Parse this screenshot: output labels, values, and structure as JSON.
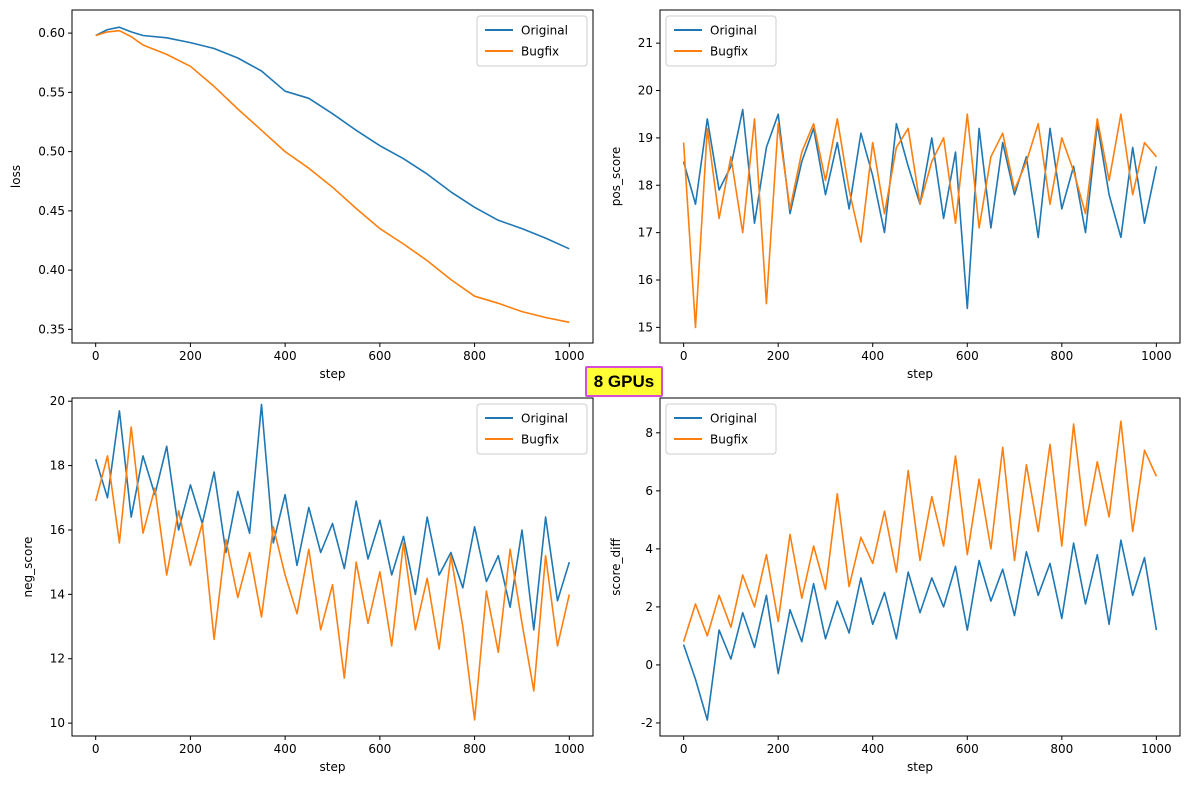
{
  "figure": {
    "badge": "8 GPUs",
    "colors": {
      "original": "#1f77b4",
      "bugfix": "#ff7f0e"
    }
  },
  "chart_data": [
    {
      "type": "line",
      "xlabel": "step",
      "ylabel": "loss",
      "xlim": [
        -50,
        1050
      ],
      "ylim": [
        0.3385,
        0.6195
      ],
      "xticks": [
        0,
        200,
        400,
        600,
        800,
        1000
      ],
      "yticks": [
        0.35,
        0.4,
        0.45,
        0.5,
        0.55,
        0.6
      ],
      "ytick_decimals": 2,
      "legend_position": "upper right",
      "grid": false,
      "series": [
        {
          "name": "Original",
          "x": [
            0,
            25,
            50,
            75,
            100,
            150,
            200,
            250,
            300,
            350,
            400,
            450,
            500,
            550,
            600,
            650,
            700,
            750,
            800,
            850,
            900,
            950,
            1000
          ],
          "y": [
            0.598,
            0.603,
            0.605,
            0.601,
            0.598,
            0.596,
            0.592,
            0.587,
            0.579,
            0.568,
            0.551,
            0.545,
            0.532,
            0.518,
            0.505,
            0.494,
            0.481,
            0.466,
            0.453,
            0.442,
            0.435,
            0.427,
            0.418
          ]
        },
        {
          "name": "Bugfix",
          "x": [
            0,
            25,
            50,
            75,
            100,
            150,
            200,
            250,
            300,
            350,
            400,
            450,
            500,
            550,
            600,
            650,
            700,
            750,
            800,
            850,
            900,
            950,
            1000
          ],
          "y": [
            0.598,
            0.601,
            0.602,
            0.597,
            0.59,
            0.582,
            0.572,
            0.555,
            0.536,
            0.518,
            0.5,
            0.486,
            0.47,
            0.452,
            0.435,
            0.422,
            0.408,
            0.392,
            0.378,
            0.372,
            0.365,
            0.36,
            0.356
          ]
        }
      ]
    },
    {
      "type": "line",
      "xlabel": "step",
      "ylabel": "pos_score",
      "xlim": [
        -50,
        1050
      ],
      "ylim": [
        14.67,
        21.7
      ],
      "xticks": [
        0,
        200,
        400,
        600,
        800,
        1000
      ],
      "yticks": [
        15,
        16,
        17,
        18,
        19,
        20,
        21
      ],
      "ytick_decimals": 0,
      "legend_position": "upper left",
      "grid": false,
      "series": [
        {
          "name": "Original",
          "x": [
            0,
            25,
            50,
            75,
            100,
            125,
            150,
            175,
            200,
            225,
            250,
            275,
            300,
            325,
            350,
            375,
            400,
            425,
            450,
            475,
            500,
            525,
            550,
            575,
            600,
            625,
            650,
            675,
            700,
            725,
            750,
            775,
            800,
            825,
            850,
            875,
            900,
            925,
            950,
            975,
            1000
          ],
          "y": [
            18.5,
            17.6,
            19.4,
            17.9,
            18.4,
            19.6,
            17.2,
            18.8,
            19.5,
            17.4,
            18.5,
            19.2,
            17.8,
            18.9,
            17.5,
            19.1,
            18.2,
            17.0,
            19.3,
            18.4,
            17.6,
            19.0,
            17.3,
            18.7,
            15.4,
            19.2,
            17.1,
            18.9,
            17.8,
            18.6,
            16.9,
            19.2,
            17.5,
            18.4,
            17.0,
            19.3,
            17.8,
            16.9,
            18.8,
            17.2,
            18.4
          ]
        },
        {
          "name": "Bugfix",
          "x": [
            0,
            25,
            50,
            75,
            100,
            125,
            150,
            175,
            200,
            225,
            250,
            275,
            300,
            325,
            350,
            375,
            400,
            425,
            450,
            475,
            500,
            525,
            550,
            575,
            600,
            625,
            650,
            675,
            700,
            725,
            750,
            775,
            800,
            825,
            850,
            875,
            900,
            925,
            950,
            975,
            1000
          ],
          "y": [
            18.9,
            15.0,
            19.2,
            17.3,
            18.6,
            17.0,
            19.4,
            15.5,
            19.3,
            17.5,
            18.7,
            19.3,
            18.1,
            19.4,
            17.9,
            16.8,
            18.9,
            17.4,
            18.8,
            19.2,
            17.6,
            18.5,
            19.0,
            17.2,
            19.5,
            17.1,
            18.6,
            19.1,
            17.9,
            18.5,
            19.3,
            17.6,
            19.0,
            18.3,
            17.4,
            19.4,
            18.1,
            19.5,
            17.8,
            18.9,
            18.6
          ]
        }
      ]
    },
    {
      "type": "line",
      "xlabel": "step",
      "ylabel": "neg_score",
      "xlim": [
        -50,
        1050
      ],
      "ylim": [
        9.6,
        20.1
      ],
      "xticks": [
        0,
        200,
        400,
        600,
        800,
        1000
      ],
      "yticks": [
        10,
        12,
        14,
        16,
        18,
        20
      ],
      "ytick_decimals": 0,
      "legend_position": "upper right",
      "grid": false,
      "series": [
        {
          "name": "Original",
          "x": [
            0,
            25,
            50,
            75,
            100,
            125,
            150,
            175,
            200,
            225,
            250,
            275,
            300,
            325,
            350,
            375,
            400,
            425,
            450,
            475,
            500,
            525,
            550,
            575,
            600,
            625,
            650,
            675,
            700,
            725,
            750,
            775,
            800,
            825,
            850,
            875,
            900,
            925,
            950,
            975,
            1000
          ],
          "y": [
            18.2,
            17.0,
            19.7,
            16.4,
            18.3,
            17.1,
            18.6,
            16.0,
            17.4,
            16.2,
            17.8,
            15.3,
            17.2,
            15.9,
            19.9,
            15.6,
            17.1,
            14.9,
            16.7,
            15.3,
            16.2,
            14.8,
            16.9,
            15.1,
            16.3,
            14.6,
            15.8,
            14.0,
            16.4,
            14.6,
            15.3,
            14.2,
            16.1,
            14.4,
            15.2,
            13.6,
            16.0,
            12.9,
            16.4,
            13.8,
            15.0
          ]
        },
        {
          "name": "Bugfix",
          "x": [
            0,
            25,
            50,
            75,
            100,
            125,
            150,
            175,
            200,
            225,
            250,
            275,
            300,
            325,
            350,
            375,
            400,
            425,
            450,
            475,
            500,
            525,
            550,
            575,
            600,
            625,
            650,
            675,
            700,
            725,
            750,
            775,
            800,
            825,
            850,
            875,
            900,
            925,
            950,
            975,
            1000
          ],
          "y": [
            16.9,
            18.3,
            15.6,
            19.2,
            15.9,
            17.3,
            14.6,
            16.6,
            14.9,
            16.2,
            12.6,
            15.7,
            13.9,
            15.3,
            13.3,
            16.1,
            14.6,
            13.4,
            15.4,
            12.9,
            14.3,
            11.4,
            15.0,
            13.1,
            14.7,
            12.4,
            15.6,
            12.9,
            14.5,
            12.3,
            15.2,
            13.0,
            10.1,
            14.1,
            12.2,
            15.4,
            13.1,
            11.0,
            15.2,
            12.4,
            14.0
          ]
        }
      ]
    },
    {
      "type": "line",
      "xlabel": "step",
      "ylabel": "score_diff",
      "xlim": [
        -50,
        1050
      ],
      "ylim": [
        -2.45,
        9.2
      ],
      "xticks": [
        0,
        200,
        400,
        600,
        800,
        1000
      ],
      "yticks": [
        -2,
        0,
        2,
        4,
        6,
        8
      ],
      "ytick_decimals": 0,
      "legend_position": "upper left",
      "grid": false,
      "series": [
        {
          "name": "Original",
          "x": [
            0,
            25,
            50,
            75,
            100,
            125,
            150,
            175,
            200,
            225,
            250,
            275,
            300,
            325,
            350,
            375,
            400,
            425,
            450,
            475,
            500,
            525,
            550,
            575,
            600,
            625,
            650,
            675,
            700,
            725,
            750,
            775,
            800,
            825,
            850,
            875,
            900,
            925,
            950,
            975,
            1000
          ],
          "y": [
            0.7,
            -0.5,
            -1.9,
            1.2,
            0.2,
            1.8,
            0.6,
            2.4,
            -0.3,
            1.9,
            0.8,
            2.8,
            0.9,
            2.2,
            1.1,
            3.0,
            1.4,
            2.5,
            0.9,
            3.2,
            1.8,
            3.0,
            2.0,
            3.4,
            1.2,
            3.6,
            2.2,
            3.3,
            1.7,
            3.9,
            2.4,
            3.5,
            1.6,
            4.2,
            2.1,
            3.8,
            1.4,
            4.3,
            2.4,
            3.7,
            1.2
          ]
        },
        {
          "name": "Bugfix",
          "x": [
            0,
            25,
            50,
            75,
            100,
            125,
            150,
            175,
            200,
            225,
            250,
            275,
            300,
            325,
            350,
            375,
            400,
            425,
            450,
            475,
            500,
            525,
            550,
            575,
            600,
            625,
            650,
            675,
            700,
            725,
            750,
            775,
            800,
            825,
            850,
            875,
            900,
            925,
            950,
            975,
            1000
          ],
          "y": [
            0.8,
            2.1,
            1.0,
            2.4,
            1.3,
            3.1,
            2.0,
            3.8,
            1.5,
            4.5,
            2.3,
            4.1,
            2.6,
            5.9,
            2.7,
            4.4,
            3.5,
            5.3,
            3.2,
            6.7,
            3.6,
            5.8,
            4.1,
            7.2,
            3.8,
            6.4,
            4.0,
            7.5,
            3.6,
            6.9,
            4.6,
            7.6,
            4.1,
            8.3,
            4.8,
            7.0,
            5.1,
            8.4,
            4.6,
            7.4,
            6.5
          ]
        }
      ]
    }
  ]
}
